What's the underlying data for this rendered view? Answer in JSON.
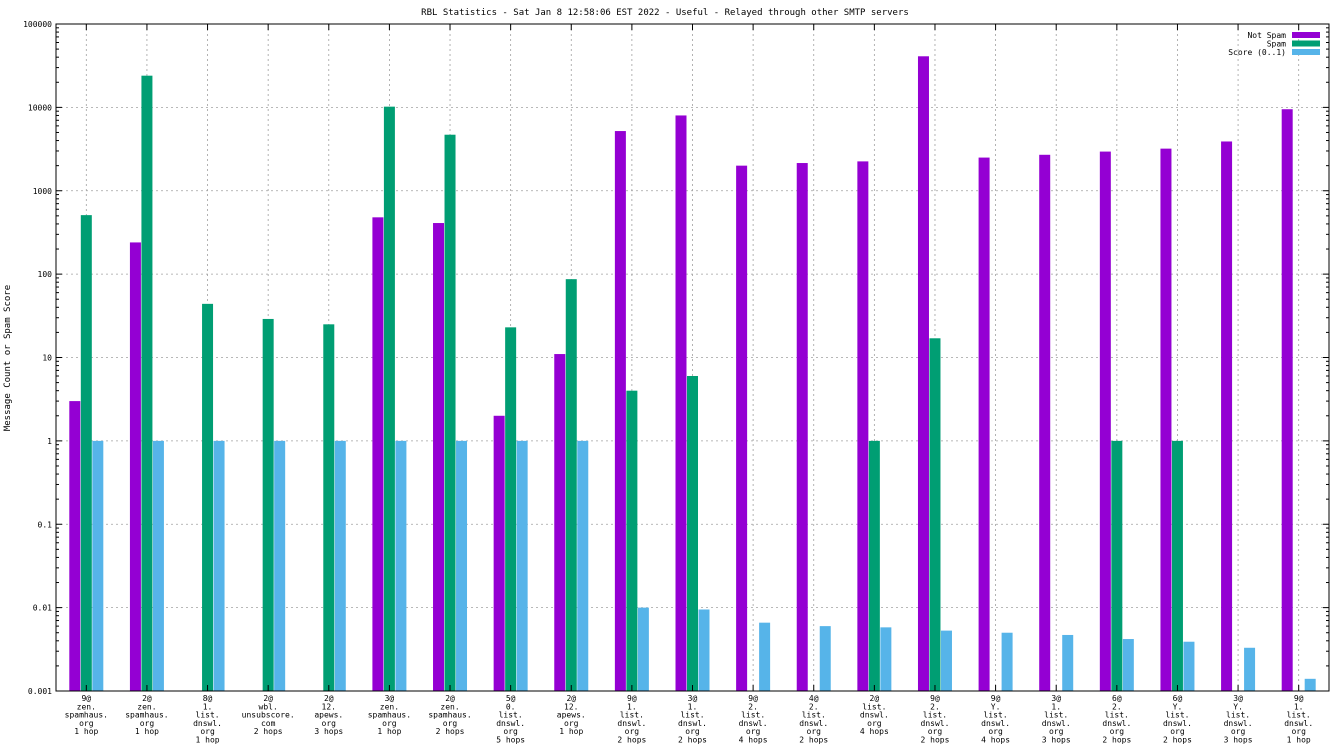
{
  "chart_data": {
    "type": "bar",
    "title": "RBL Statistics - Sat Jan  8 12:58:06 EST 2022 - Useful - Relayed through other SMTP servers",
    "xlabel": "",
    "ylabel": "Message Count or Spam Score",
    "yscale": "log",
    "ylim": [
      0.001,
      100000
    ],
    "yticks": [
      "0.001",
      "0.01",
      "0.1",
      "1",
      "10",
      "100",
      "1000",
      "10000",
      "100000"
    ],
    "grid": true,
    "legend_position": "top-right",
    "categories": [
      [
        "9@",
        "zen.",
        "spamhaus.",
        "org",
        "1 hop"
      ],
      [
        "2@",
        "zen.",
        "spamhaus.",
        "org",
        "1 hop"
      ],
      [
        "8@",
        "1.",
        "list.",
        "dnswl.",
        "org",
        "1 hop"
      ],
      [
        "2@",
        "wbl.",
        "unsubscore.",
        "com",
        "2 hops"
      ],
      [
        "2@",
        "12.",
        "apews.",
        "org",
        "3 hops"
      ],
      [
        "3@",
        "zen.",
        "spamhaus.",
        "org",
        "1 hop"
      ],
      [
        "2@",
        "zen.",
        "spamhaus.",
        "org",
        "2 hops"
      ],
      [
        "5@",
        "0.",
        "list.",
        "dnswl.",
        "org",
        "5 hops"
      ],
      [
        "2@",
        "12.",
        "apews.",
        "org",
        "1 hop"
      ],
      [
        "9@",
        "1.",
        "list.",
        "dnswl.",
        "org",
        "2 hops"
      ],
      [
        "3@",
        "1.",
        "list.",
        "dnswl.",
        "org",
        "2 hops"
      ],
      [
        "9@",
        "2.",
        "list.",
        "dnswl.",
        "org",
        "4 hops"
      ],
      [
        "4@",
        "2.",
        "list.",
        "dnswl.",
        "org",
        "2 hops"
      ],
      [
        "2@",
        "list.",
        "dnswl.",
        "org",
        "4 hops"
      ],
      [
        "9@",
        "2.",
        "list.",
        "dnswl.",
        "org",
        "2 hops"
      ],
      [
        "9@",
        "Y.",
        "list.",
        "dnswl.",
        "org",
        "4 hops"
      ],
      [
        "3@",
        "1.",
        "list.",
        "dnswl.",
        "org",
        "3 hops"
      ],
      [
        "6@",
        "2.",
        "list.",
        "dnswl.",
        "org",
        "2 hops"
      ],
      [
        "6@",
        "Y.",
        "list.",
        "dnswl.",
        "org",
        "2 hops"
      ],
      [
        "3@",
        "Y.",
        "list.",
        "dnswl.",
        "org",
        "3 hops"
      ],
      [
        "9@",
        "1.",
        "list.",
        "dnswl.",
        "org",
        "1 hop"
      ]
    ],
    "series": [
      {
        "name": "Not Spam",
        "color": "#9400d3",
        "values": [
          3,
          240,
          null,
          null,
          null,
          480,
          410,
          2,
          11,
          5200,
          8000,
          2000,
          2150,
          2250,
          41000,
          2500,
          2700,
          2950,
          3200,
          3900,
          9500
        ]
      },
      {
        "name": "Spam",
        "color": "#009e73",
        "values": [
          510,
          24000,
          44,
          29,
          25,
          10200,
          4700,
          23,
          87,
          4,
          6,
          null,
          null,
          1,
          17,
          null,
          null,
          1,
          1,
          null,
          null
        ]
      },
      {
        "name": "Score (0..1)",
        "color": "#56b4e9",
        "values": [
          1,
          1,
          1,
          1,
          1,
          1,
          1,
          1,
          1,
          0.01,
          0.0095,
          0.0066,
          0.006,
          0.0058,
          0.0053,
          0.005,
          0.0047,
          0.0042,
          0.0039,
          0.0033,
          0.0014
        ]
      }
    ]
  }
}
